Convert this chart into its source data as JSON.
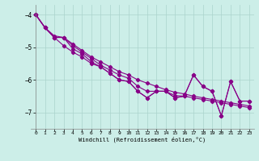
{
  "xlabel": "Windchill (Refroidissement éolien,°C)",
  "background_color": "#cceee8",
  "line_color": "#880088",
  "grid_color": "#aad4cc",
  "xlim": [
    -0.5,
    23.5
  ],
  "ylim": [
    -7.5,
    -3.7
  ],
  "yticks": [
    -7,
    -6,
    -5,
    -4
  ],
  "xticks": [
    0,
    1,
    2,
    3,
    4,
    5,
    6,
    7,
    8,
    9,
    10,
    11,
    12,
    13,
    14,
    15,
    16,
    17,
    18,
    19,
    20,
    21,
    22,
    23
  ],
  "line1_x": [
    0,
    1,
    2,
    3,
    4,
    5,
    6,
    7,
    8,
    9,
    10,
    11,
    12,
    13,
    14,
    15,
    16,
    17,
    18,
    19,
    20,
    21,
    22,
    23
  ],
  "line1_y": [
    -4.0,
    -4.4,
    -4.65,
    -4.7,
    -4.9,
    -5.1,
    -5.3,
    -5.45,
    -5.6,
    -5.75,
    -5.85,
    -6.0,
    -6.1,
    -6.2,
    -6.3,
    -6.38,
    -6.43,
    -6.5,
    -6.55,
    -6.6,
    -6.65,
    -6.7,
    -6.75,
    -6.8
  ],
  "line2_x": [
    0,
    1,
    2,
    3,
    4,
    5,
    6,
    7,
    8,
    9,
    10,
    11,
    12,
    13,
    14,
    15,
    16,
    17,
    18,
    19,
    20,
    21,
    22,
    23
  ],
  "line2_y": [
    -4.0,
    -4.4,
    -4.7,
    -4.7,
    -4.95,
    -5.15,
    -5.35,
    -5.55,
    -5.7,
    -5.85,
    -5.95,
    -6.2,
    -6.35,
    -6.35,
    -6.35,
    -6.48,
    -6.5,
    -6.55,
    -6.6,
    -6.65,
    -6.7,
    -6.75,
    -6.8,
    -6.85
  ],
  "line3_x": [
    0,
    1,
    2,
    3,
    4,
    5,
    6,
    7,
    8,
    9,
    10,
    11,
    12,
    13,
    14,
    15,
    16,
    17,
    18,
    19,
    20,
    21,
    22,
    23
  ],
  "line3_y": [
    -4.0,
    -4.4,
    -4.7,
    -4.7,
    -5.05,
    -5.2,
    -5.45,
    -5.6,
    -5.8,
    -6.0,
    -6.05,
    -6.35,
    -6.55,
    -6.35,
    -6.35,
    -6.55,
    -6.5,
    -5.85,
    -6.2,
    -6.35,
    -7.1,
    -6.05,
    -6.65,
    -6.65
  ],
  "line4_x": [
    0,
    1,
    2,
    3,
    4,
    5,
    6,
    7,
    8,
    9,
    10,
    11,
    12,
    13,
    14,
    15,
    16,
    17,
    18,
    19,
    20,
    21,
    22,
    23
  ],
  "line4_y": [
    -4.0,
    -4.4,
    -4.7,
    -4.95,
    -5.15,
    -5.3,
    -5.5,
    -5.6,
    -5.8,
    -6.0,
    -6.05,
    -6.35,
    -6.55,
    -6.35,
    -6.35,
    -6.55,
    -6.5,
    -5.85,
    -6.2,
    -6.35,
    -7.1,
    -6.05,
    -6.65,
    -6.65
  ]
}
